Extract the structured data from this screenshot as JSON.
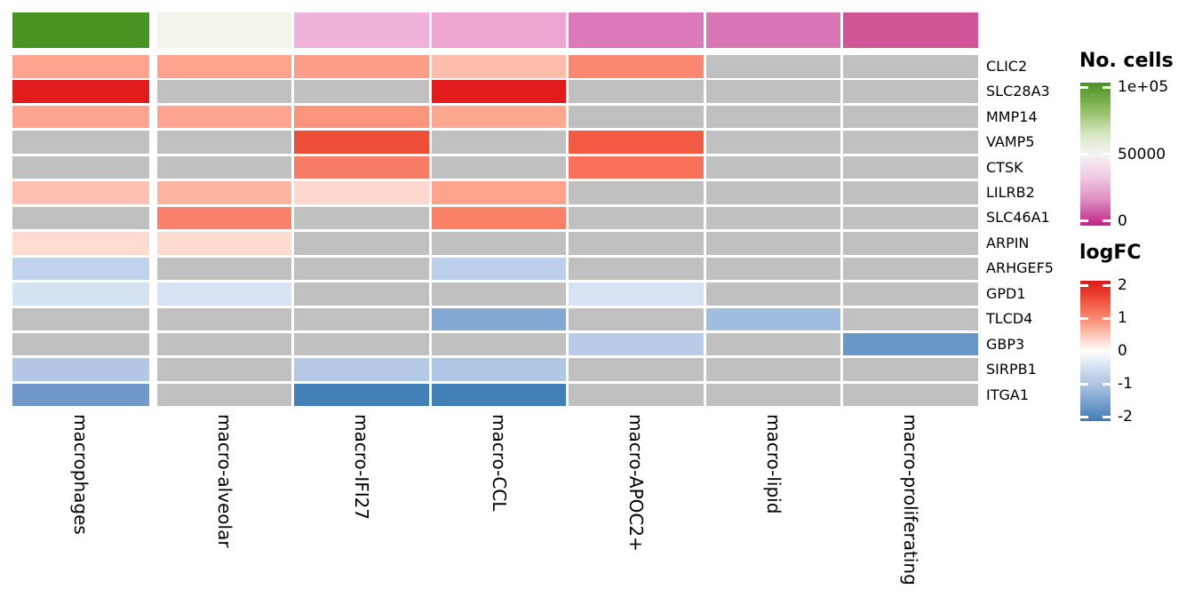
{
  "chart_data": {
    "type": "heatmap",
    "description": "Differential expression heatmap of marker genes across macrophage subtypes; top annotation bar encodes number of cells per subtype, cells encode logFC (gray = not significant / NA)",
    "columns": [
      "macrophages",
      "macro-alveolar",
      "macro-IFI27",
      "macro-CCL",
      "macro-APOC2+",
      "macro-lipid",
      "macro-proliferating"
    ],
    "genes": [
      "CLIC2",
      "SLC28A3",
      "MMP14",
      "VAMP5",
      "CTSK",
      "LILRB2",
      "SLC46A1",
      "ARPIN",
      "ARHGEF5",
      "GPD1",
      "TLCD4",
      "GBP3",
      "SIRPB1",
      "ITGA1"
    ],
    "na_color": "#C0C0C0",
    "no_cells_annotation": {
      "legend_title": "No. cells",
      "tick_labels": [
        "1e+05",
        "50000",
        "0"
      ],
      "tick_values": [
        100000,
        50000,
        0
      ],
      "range": [
        0,
        100000
      ],
      "gradient_stops": [
        "#4A9221 0%",
        "#8CBA5E 18%",
        "#D6E7C0 36%",
        "#F6F2F4 50%",
        "#F0CEE5 65%",
        "#DE8DC2 82%",
        "#C02384 100%"
      ],
      "column_colors": [
        "#4A9221",
        "#F3F5EA",
        "#F0B1DB",
        "#EDA5D2",
        "#DC79B8",
        "#DA75B5",
        "#D25697"
      ],
      "column_values_estimated": [
        100000,
        52000,
        30000,
        27000,
        15000,
        14000,
        8000
      ]
    },
    "logfc_legend": {
      "legend_title": "logFC",
      "tick_labels": [
        "2",
        "1",
        "0",
        "-1",
        "-2"
      ],
      "tick_values": [
        2,
        1,
        0,
        -1,
        -2
      ],
      "range": [
        -2,
        2
      ],
      "gradient_stops": [
        "#DA1A1A 0%",
        "#EE4D37 13%",
        "#FA8B74 27%",
        "#FDCDBF 40%",
        "#FFFFFF 50%",
        "#D9E4F3 60%",
        "#AFC6E4 73%",
        "#7BA3D0 86%",
        "#3F7DB5 100%"
      ]
    },
    "rows": [
      {
        "gene": "CLIC2",
        "values": [
          1.0,
          1.0,
          1.05,
          0.75,
          1.2,
          null,
          null
        ],
        "colors": [
          "#FCA28D",
          "#FCA28D",
          "#FC9E88",
          "#FEBCAB",
          "#FA8870",
          null,
          null
        ]
      },
      {
        "gene": "SLC28A3",
        "values": [
          2.1,
          null,
          null,
          2.1,
          null,
          null,
          null
        ],
        "colors": [
          "#E21C1C",
          null,
          null,
          "#E21C1C",
          null,
          null,
          null
        ]
      },
      {
        "gene": "MMP14",
        "values": [
          1.0,
          1.0,
          1.1,
          0.95,
          null,
          null,
          null
        ],
        "colors": [
          "#FCA48F",
          "#FCA48F",
          "#FB947D",
          "#FCA891",
          null,
          null,
          null
        ]
      },
      {
        "gene": "VAMP5",
        "values": [
          null,
          null,
          1.6,
          null,
          1.5,
          null,
          null
        ],
        "colors": [
          null,
          null,
          "#EE4D36",
          null,
          "#F45B43",
          null,
          null
        ]
      },
      {
        "gene": "CTSK",
        "values": [
          null,
          null,
          1.3,
          null,
          1.35,
          null,
          null
        ],
        "colors": [
          null,
          null,
          "#F87C65",
          null,
          "#F8715B",
          null,
          null
        ]
      },
      {
        "gene": "LILRB2",
        "values": [
          0.7,
          0.85,
          0.45,
          0.95,
          null,
          null,
          null
        ],
        "colors": [
          "#FEC0B1",
          "#FDB5A2",
          "#FED8CC",
          "#FDA28B",
          null,
          null,
          null
        ]
      },
      {
        "gene": "SLC46A1",
        "values": [
          null,
          1.2,
          null,
          1.2,
          null,
          null,
          null
        ],
        "colors": [
          null,
          "#FA8069",
          null,
          "#FA8168",
          null,
          null,
          null
        ]
      },
      {
        "gene": "ARPIN",
        "values": [
          0.45,
          0.45,
          null,
          null,
          null,
          null,
          null
        ],
        "colors": [
          "#FEDACF",
          "#FEDACF",
          null,
          null,
          null,
          null,
          null
        ]
      },
      {
        "gene": "ARHGEF5",
        "values": [
          -0.85,
          null,
          null,
          -0.9,
          null,
          null,
          null
        ],
        "colors": [
          "#C0D2EC",
          null,
          null,
          "#BCCFEA",
          null,
          null,
          null
        ]
      },
      {
        "gene": "GPD1",
        "values": [
          -0.55,
          -0.5,
          null,
          null,
          -0.5,
          null,
          null
        ],
        "colors": [
          "#D5E2F2",
          "#D8E4F3",
          null,
          null,
          "#D7E3F2",
          null,
          null
        ]
      },
      {
        "gene": "TLCD4",
        "values": [
          null,
          null,
          null,
          -1.55,
          null,
          -1.15,
          null
        ],
        "colors": [
          null,
          null,
          null,
          "#84A9D4",
          null,
          "#A0BDE0",
          null
        ]
      },
      {
        "gene": "GBP3",
        "values": [
          null,
          null,
          null,
          null,
          -0.95,
          null,
          -1.85
        ],
        "colors": [
          null,
          null,
          null,
          null,
          "#B8CCE8",
          null,
          "#6897C8"
        ]
      },
      {
        "gene": "SIRPB1",
        "values": [
          -1.0,
          null,
          -1.0,
          -1.05,
          null,
          null,
          null
        ],
        "colors": [
          "#B3C8E6",
          null,
          "#B5CAE7",
          "#AFC6E4",
          null,
          null,
          null
        ]
      },
      {
        "gene": "ITGA1",
        "values": [
          -1.75,
          null,
          -2.2,
          -2.2,
          null,
          null,
          null
        ],
        "colors": [
          "#7099CA",
          null,
          "#4380B7",
          "#427FB6",
          null,
          null,
          null
        ]
      }
    ]
  }
}
